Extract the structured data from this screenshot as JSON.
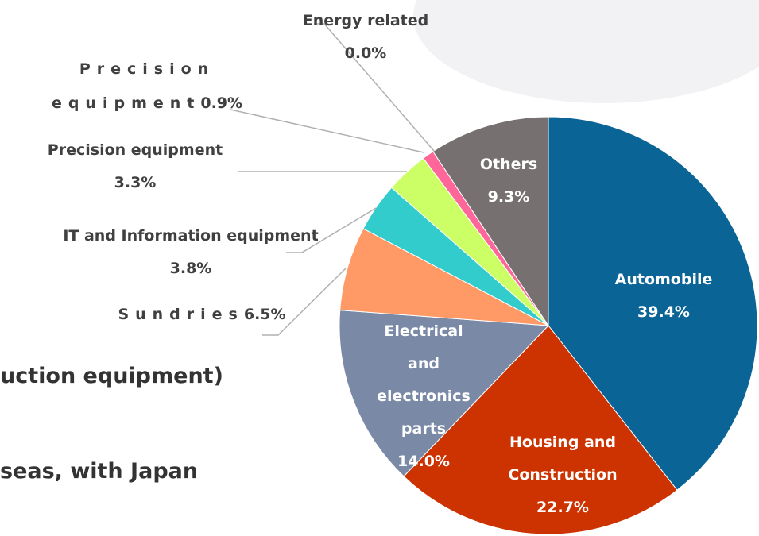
{
  "chart_data": {
    "type": "pie",
    "categories": [
      "Automobile",
      "Housing and Construction",
      "Electrical and electronics parts",
      "Sundries",
      "IT and Information equipment",
      "Precision equipment",
      "Precision equipment",
      "Energy related",
      "Others"
    ],
    "values": [
      39.4,
      22.7,
      14.0,
      6.5,
      3.8,
      3.3,
      0.9,
      0.0,
      9.3
    ],
    "value_labels": [
      "39.4%",
      "22.7%",
      "14.0%",
      "6.5%",
      "3.8%",
      "3.3%",
      "0.9%",
      "0.0%",
      "9.3%"
    ],
    "colors": [
      "#0b6496",
      "#cc3300",
      "#7a8aa6",
      "#ff9966",
      "#33cccc",
      "#ccff66",
      "#ff6699",
      "#999999",
      "#767170"
    ],
    "annotations": [
      "uction equipment)",
      "seas, with Japan"
    ]
  }
}
